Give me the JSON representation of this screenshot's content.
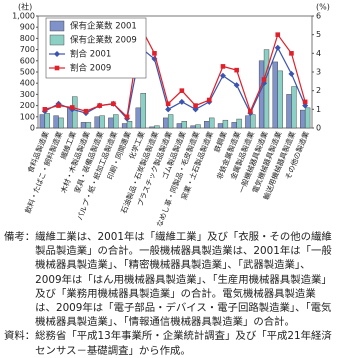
{
  "chart_data": {
    "type": "bar",
    "y_unit": "(社)",
    "y2_unit": "(%)",
    "categories": [
      "食料品製造業",
      "飲料・たばこ・飼料製造業",
      "繊維工業",
      "木材・木製品製造業",
      "家具・装備品製造業",
      "パルプ・紙・紙加工品製造業",
      "印刷・同関連業",
      "化学工業",
      "石油製品・石炭製品製造業",
      "プラスチック製品製造業",
      "ゴム製品製造業",
      "なめし革・同製品・毛皮製造業",
      "窯業・土石製品製造業",
      "鉄鋼業",
      "非鉄金属製造業",
      "金属製品製造業",
      "一般機械器具製造業",
      "電気機械器具製造業",
      "輸送用機械器具製造業",
      "その他の製造業"
    ],
    "series": [
      {
        "name": "保有企業数 2001",
        "type": "bar",
        "color": "#7f92c9",
        "values": [
          120,
          110,
          190,
          50,
          100,
          90,
          40,
          180,
          10,
          90,
          40,
          20,
          60,
          40,
          50,
          110,
          600,
          590,
          300,
          160
        ]
      },
      {
        "name": "保有企業数 2009",
        "type": "bar",
        "color": "#8ccfc4",
        "values": [
          130,
          90,
          280,
          50,
          110,
          120,
          60,
          310,
          20,
          120,
          60,
          30,
          90,
          70,
          80,
          120,
          700,
          510,
          370,
          180
        ]
      },
      {
        "name": "割合 2001",
        "type": "line",
        "axis": "y2",
        "color": "#3a54b0",
        "marker": "diamond",
        "values": [
          0.9,
          1.3,
          1.0,
          0.8,
          1.2,
          1.3,
          0.5,
          4.3,
          3.7,
          1.0,
          1.4,
          1.0,
          1.4,
          2.8,
          2.3,
          0.8,
          2.4,
          4.3,
          2.9,
          1.2
        ]
      },
      {
        "name": "割合 2009",
        "type": "line",
        "axis": "y2",
        "color": "#e0202a",
        "marker": "square",
        "values": [
          1.0,
          1.2,
          1.1,
          0.9,
          1.2,
          1.3,
          0.6,
          5.4,
          4.0,
          1.3,
          2.0,
          1.2,
          1.5,
          3.3,
          3.1,
          0.9,
          2.6,
          5.0,
          4.0,
          1.4
        ]
      }
    ],
    "ylim": [
      0,
      1000
    ],
    "yticks": [
      0,
      100,
      200,
      300,
      400,
      500,
      600,
      700,
      800,
      900,
      {
        "value": 1000,
        "label": "1,000"
      }
    ],
    "y2lim": [
      0,
      6
    ],
    "y2ticks": [
      0,
      1,
      2,
      3,
      4,
      5,
      6
    ],
    "legend": "top-left",
    "grid": false
  },
  "notes": {
    "label": "備考：",
    "text": "繊維工業は、2001年は「繊維工業」及び「衣服・その他の繊維製品製造業」の合計。一般機械器具製造業は、2001年は「一般機械器具製造業」、「精密機械器具製造業」、「武器製造業」、2009年は「はん用機械器具製造業」、「生産用機械器具製造業」及び「業務用機械器具製造業」の合計。電気機械器具製造業は、2009年は「電子部品・デバイス・電子回路製造業」、「電気機械器具製造業」、「情報通信機械器具製造業」の合計。"
  },
  "source": {
    "label": "資料：",
    "text": "総務省「平成13年事業所・企業統計調査」及び「平成21年経済センサス－基礎調査」から作成。"
  }
}
